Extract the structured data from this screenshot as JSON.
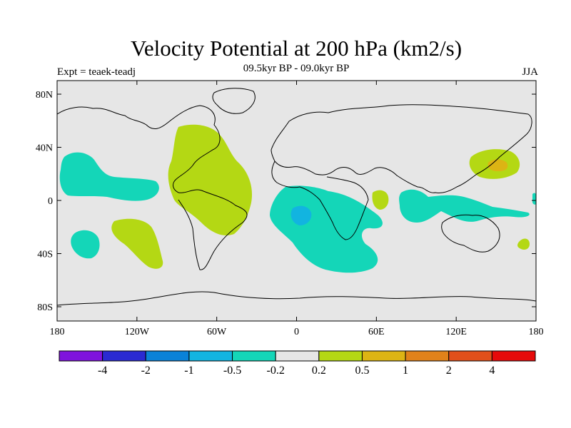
{
  "header": {
    "title": "Velocity Potential at 200 hPa (km2/s)",
    "subtitle": "09.5kyr BP - 09.0kyr BP",
    "experiment": "Expt = teaek-teadj",
    "season": "JJA"
  },
  "axes": {
    "lat_labels": [
      "80N",
      "40N",
      "0",
      "40S",
      "80S"
    ],
    "lon_labels": [
      "180",
      "120W",
      "60W",
      "0",
      "60E",
      "120E",
      "180"
    ]
  },
  "colorbar": {
    "colors": [
      "#7f13dc",
      "#2a2ad2",
      "#0a82d8",
      "#12b4e0",
      "#14d6b8",
      "#e6e6e6",
      "#b4d814",
      "#dcb414",
      "#e0821a",
      "#e0501a",
      "#e60a0a"
    ],
    "labels": [
      "-4",
      "-2",
      "-1",
      "-0.5",
      "-0.2",
      "0.2",
      "0.5",
      "1",
      "2",
      "4"
    ]
  },
  "map": {
    "background_color": "#e6e6e6",
    "positive_color": "#b4d814",
    "negative_color": "#14d6b8",
    "strong_negative_color": "#12b4e0",
    "strong_positive_color": "#dcb414"
  }
}
